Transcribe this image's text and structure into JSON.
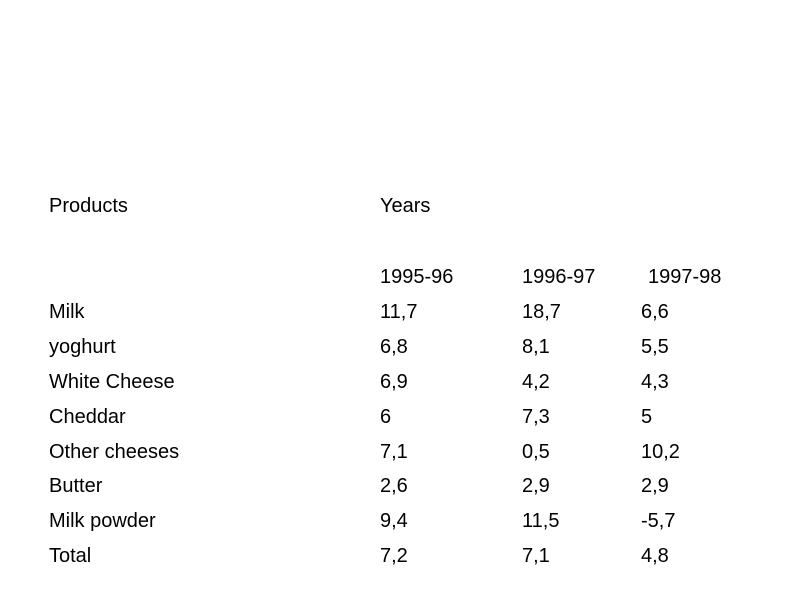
{
  "table": {
    "header_products": "Products",
    "header_years": "Years",
    "years": [
      "1995-96",
      "1996-97",
      "1997-98"
    ],
    "rows": [
      {
        "product": "Milk",
        "values": [
          "11,7",
          "18,7",
          "6,6"
        ]
      },
      {
        "product": "yoghurt",
        "values": [
          "6,8",
          "8,1",
          "5,5"
        ]
      },
      {
        "product": "White Cheese",
        "values": [
          "6,9",
          "4,2",
          "4,3"
        ]
      },
      {
        "product": "Cheddar",
        "values": [
          "6",
          "7,3",
          "5"
        ]
      },
      {
        "product": "Other cheeses",
        "values": [
          "7,1",
          "0,5",
          "10,2"
        ]
      },
      {
        "product": "Butter",
        "values": [
          "2,6",
          "2,9",
          "2,9"
        ]
      },
      {
        "product": "Milk powder",
        "values": [
          "9,4",
          "11,5",
          "-5,7"
        ]
      },
      {
        "product": "Total",
        "values": [
          "7,2",
          "7,1",
          "4,8"
        ]
      }
    ]
  }
}
